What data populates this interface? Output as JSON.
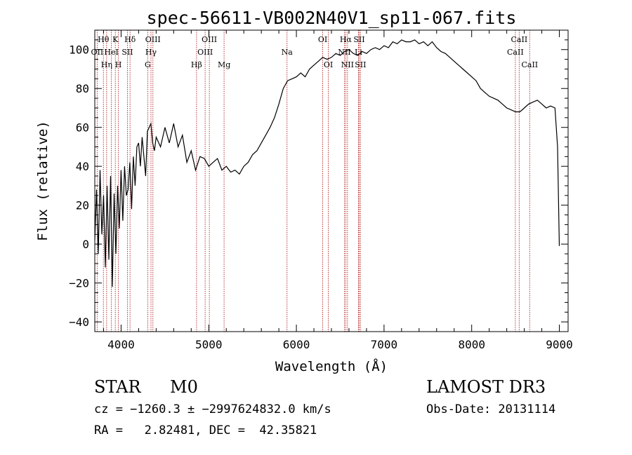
{
  "chart_data": {
    "type": "line",
    "title": "spec-56611-VB002N40V1_sp11-067.fits",
    "xlabel": "Wavelength (Å)",
    "ylabel": "Flux (relative)",
    "xlim": [
      3700,
      9100
    ],
    "ylim": [
      -45,
      110
    ],
    "xticks": [
      {
        "value": 4000,
        "label": "4000"
      },
      {
        "value": 5000,
        "label": "5000"
      },
      {
        "value": 6000,
        "label": "6000"
      },
      {
        "value": 7000,
        "label": "7000"
      },
      {
        "value": 8000,
        "label": "8000"
      },
      {
        "value": 9000,
        "label": "9000"
      }
    ],
    "yticks": [
      {
        "value": -40,
        "label": "−40"
      },
      {
        "value": -20,
        "label": "−20"
      },
      {
        "value": 0,
        "label": "0"
      },
      {
        "value": 20,
        "label": "20"
      },
      {
        "value": 40,
        "label": "40"
      },
      {
        "value": 60,
        "label": "60"
      },
      {
        "value": 80,
        "label": "80"
      },
      {
        "value": 100,
        "label": "100"
      }
    ],
    "series": [
      {
        "name": "flux",
        "x": [
          3700,
          3720,
          3740,
          3760,
          3780,
          3800,
          3820,
          3840,
          3860,
          3880,
          3900,
          3920,
          3940,
          3960,
          3980,
          4000,
          4020,
          4040,
          4060,
          4080,
          4100,
          4120,
          4140,
          4160,
          4180,
          4200,
          4220,
          4240,
          4260,
          4280,
          4300,
          4320,
          4340,
          4360,
          4380,
          4400,
          4450,
          4500,
          4550,
          4600,
          4650,
          4700,
          4750,
          4800,
          4850,
          4900,
          4950,
          5000,
          5050,
          5100,
          5150,
          5200,
          5250,
          5300,
          5350,
          5400,
          5450,
          5500,
          5550,
          5600,
          5650,
          5700,
          5750,
          5800,
          5850,
          5900,
          5950,
          6000,
          6050,
          6100,
          6150,
          6200,
          6250,
          6300,
          6350,
          6400,
          6450,
          6500,
          6550,
          6600,
          6650,
          6700,
          6750,
          6800,
          6850,
          6900,
          6950,
          7000,
          7050,
          7100,
          7150,
          7200,
          7250,
          7300,
          7350,
          7400,
          7450,
          7500,
          7550,
          7600,
          7650,
          7700,
          7750,
          7800,
          7850,
          7900,
          7950,
          8000,
          8050,
          8100,
          8150,
          8200,
          8250,
          8300,
          8350,
          8400,
          8450,
          8500,
          8550,
          8600,
          8650,
          8700,
          8750,
          8800,
          8850,
          8900,
          8950,
          8980,
          9000
        ],
        "y": [
          2,
          28,
          -5,
          38,
          5,
          25,
          -12,
          30,
          -8,
          35,
          -22,
          26,
          -5,
          30,
          8,
          38,
          12,
          40,
          25,
          28,
          42,
          18,
          45,
          30,
          50,
          52,
          40,
          55,
          45,
          35,
          58,
          60,
          62,
          52,
          48,
          55,
          50,
          60,
          52,
          62,
          50,
          56,
          42,
          48,
          38,
          45,
          44,
          40,
          42,
          44,
          38,
          40,
          37,
          38,
          36,
          40,
          42,
          46,
          48,
          52,
          56,
          60,
          65,
          72,
          80,
          84,
          85,
          86,
          88,
          86,
          90,
          92,
          94,
          96,
          95,
          96,
          98,
          97,
          99,
          100,
          98,
          97,
          99,
          98,
          100,
          101,
          100,
          102,
          101,
          104,
          103,
          105,
          104,
          104,
          105,
          103,
          104,
          102,
          104,
          101,
          99,
          98,
          96,
          94,
          92,
          90,
          88,
          86,
          84,
          80,
          78,
          76,
          75,
          74,
          72,
          70,
          69,
          68,
          68,
          70,
          72,
          73,
          74,
          72,
          70,
          71,
          70,
          50,
          -1
        ]
      }
    ],
    "line_annotations": [
      {
        "label": "Hθ",
        "wavelength": 3798,
        "row": 0
      },
      {
        "label": "OII",
        "wavelength": 3727,
        "row": 1
      },
      {
        "label": "Hη",
        "wavelength": 3835,
        "row": 2
      },
      {
        "label": "K",
        "wavelength": 3934,
        "row": 0
      },
      {
        "label": "HeI",
        "wavelength": 3889,
        "row": 1
      },
      {
        "label": "H",
        "wavelength": 3969,
        "row": 2
      },
      {
        "label": "Hδ",
        "wavelength": 4102,
        "row": 0
      },
      {
        "label": "SII",
        "wavelength": 4072,
        "row": 1
      },
      {
        "label": "OIII",
        "wavelength": 4363,
        "row": 0
      },
      {
        "label": "Hγ",
        "wavelength": 4341,
        "row": 1
      },
      {
        "label": "G",
        "wavelength": 4304,
        "row": 2
      },
      {
        "label": "Hβ",
        "wavelength": 4861,
        "row": 2
      },
      {
        "label": "OIII",
        "wavelength": 5007,
        "row": 0
      },
      {
        "label": "OIII",
        "wavelength": 4959,
        "row": 1
      },
      {
        "label": "Mg",
        "wavelength": 5175,
        "row": 2
      },
      {
        "label": "Na",
        "wavelength": 5893,
        "row": 1
      },
      {
        "label": "OI",
        "wavelength": 6300,
        "row": 0
      },
      {
        "label": "OI",
        "wavelength": 6364,
        "row": 2
      },
      {
        "label": "Hα",
        "wavelength": 6563,
        "row": 0
      },
      {
        "label": "NII",
        "wavelength": 6548,
        "row": 1
      },
      {
        "label": "NII",
        "wavelength": 6583,
        "row": 2
      },
      {
        "label": "SII",
        "wavelength": 6716,
        "row": 0
      },
      {
        "label": "Li",
        "wavelength": 6708,
        "row": 1
      },
      {
        "label": "SII",
        "wavelength": 6731,
        "row": 2
      },
      {
        "label": "CaII",
        "wavelength": 8542,
        "row": 0
      },
      {
        "label": "CaII",
        "wavelength": 8498,
        "row": 1
      },
      {
        "label": "CaII",
        "wavelength": 8662,
        "row": 2
      }
    ],
    "line_color": "#000000",
    "marker_color": "#b22222"
  },
  "info": {
    "object_class": "STAR",
    "subclass": "M0",
    "survey": "LAMOST DR3",
    "cz_line": "cz = −1260.3 ± −2997624832.0 km/s",
    "obs_date": "Obs-Date: 20131114",
    "radec": "RA =   2.82481, DEC =  42.35821"
  }
}
